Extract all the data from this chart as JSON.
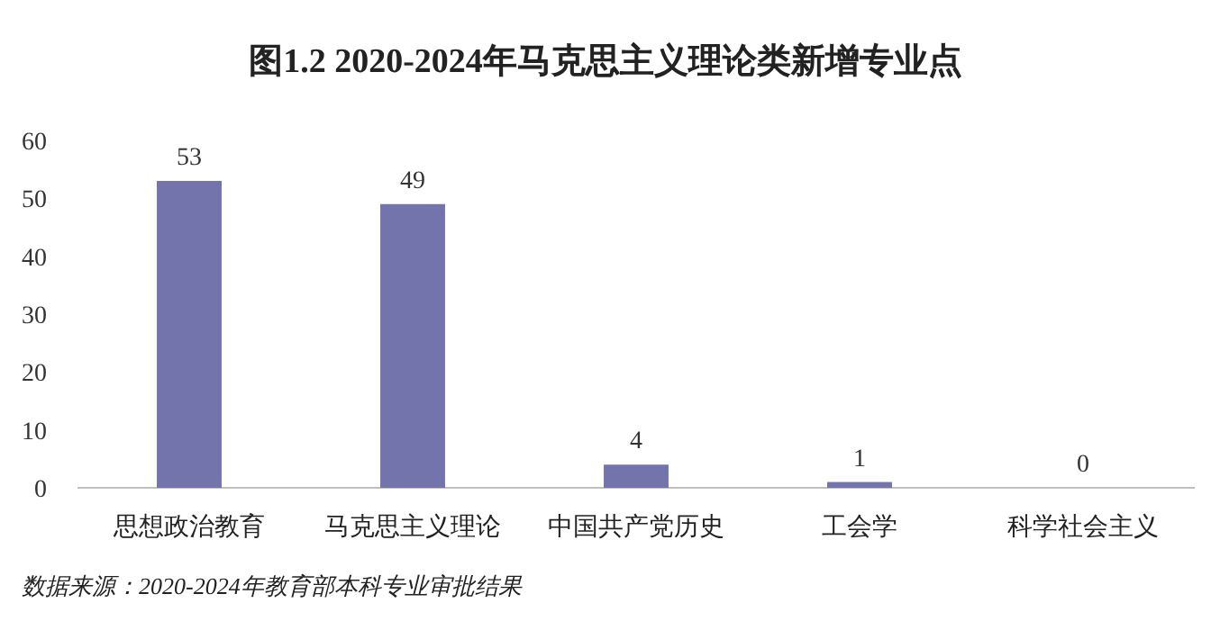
{
  "chart_data": {
    "type": "bar",
    "title": "图1.2 2020-2024年马克思主义理论类新增专业点",
    "categories": [
      "思想政治教育",
      "马克思主义理论",
      "中国共产党历史",
      "工会学",
      "科学社会主义"
    ],
    "values": [
      53,
      49,
      4,
      1,
      0
    ],
    "color": "#7474ad",
    "ylim": [
      0,
      60
    ],
    "yticks": [
      0,
      10,
      20,
      30,
      40,
      50,
      60
    ],
    "data_labels": true,
    "grid": false,
    "annotations": [
      "数据来源：2020-2024年教育部本科专业审批结果"
    ]
  }
}
